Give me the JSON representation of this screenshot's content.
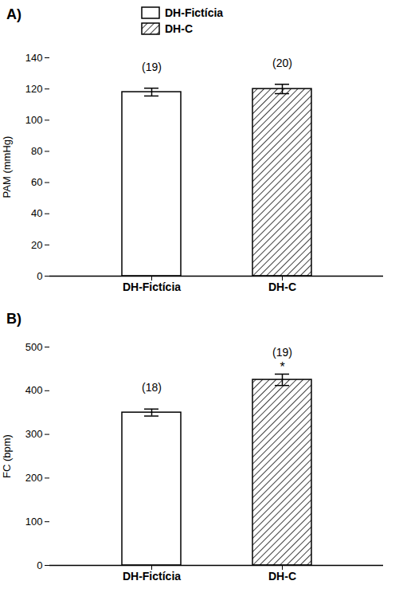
{
  "chart_data": [
    {
      "type": "bar",
      "title": "A)",
      "categories": [
        "DH-Fictícia",
        "DH-C"
      ],
      "values": [
        118,
        120
      ],
      "errors": [
        2.5,
        3.0
      ],
      "n_labels": [
        "(19)",
        "(20)"
      ],
      "ylabel": "PAM (mmHg)",
      "ylim": [
        0,
        140
      ],
      "yticks": [
        0,
        20,
        40,
        60,
        80,
        100,
        120,
        140
      ],
      "grid": false,
      "legend": "top"
    },
    {
      "type": "bar",
      "title": "B)",
      "categories": [
        "DH-Fictícia",
        "DH-C"
      ],
      "values": [
        350,
        425
      ],
      "errors": [
        8,
        13
      ],
      "n_labels": [
        "(18)",
        "(19)"
      ],
      "star_labels": [
        null,
        "*"
      ],
      "ylabel": "FC (bpm)",
      "ylim": [
        0,
        500
      ],
      "yticks": [
        0,
        100,
        200,
        300,
        400,
        500
      ],
      "grid": false
    }
  ]
}
